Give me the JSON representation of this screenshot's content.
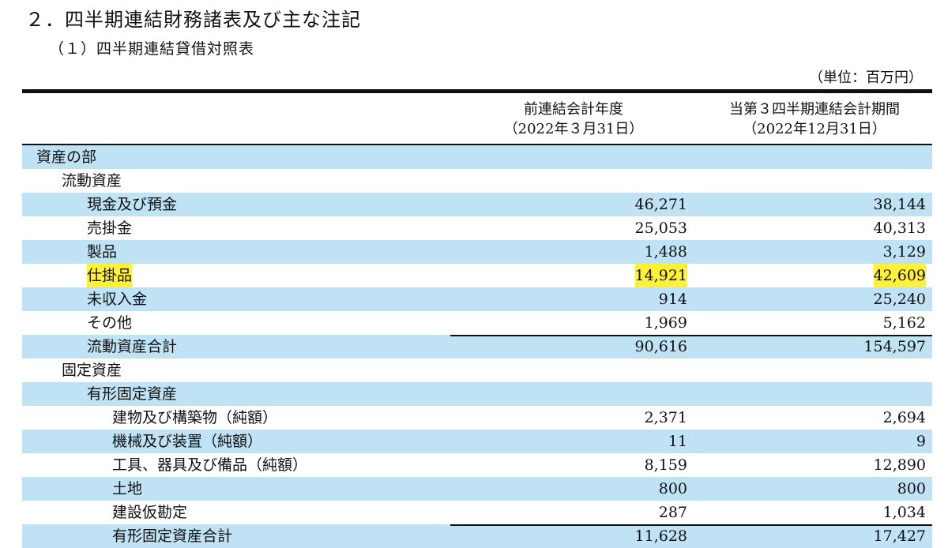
{
  "section_title": "２．四半期連結財務諸表及び主な注記",
  "sub_title": "（１）四半期連結貸借対照表",
  "unit_note": "（単位：百万円）",
  "columns": {
    "prev_line1": "前連結会計年度",
    "prev_line2": "（2022年３月31日）",
    "curr_line1": "当第３四半期連結会計期間",
    "curr_line2": "（2022年12月31日）"
  },
  "rows": [
    {
      "label": "資産の部",
      "prev": "",
      "curr": ""
    },
    {
      "label": "流動資産",
      "prev": "",
      "curr": ""
    },
    {
      "label": "現金及び預金",
      "prev": "46,271",
      "curr": "38,144"
    },
    {
      "label": "売掛金",
      "prev": "25,053",
      "curr": "40,313"
    },
    {
      "label": "製品",
      "prev": "1,488",
      "curr": "3,129"
    },
    {
      "label": "仕掛品",
      "prev": "14,921",
      "curr": "42,609"
    },
    {
      "label": "未収入金",
      "prev": "914",
      "curr": "25,240"
    },
    {
      "label": "その他",
      "prev": "1,969",
      "curr": "5,162"
    },
    {
      "label": "流動資産合計",
      "prev": "90,616",
      "curr": "154,597"
    },
    {
      "label": "固定資産",
      "prev": "",
      "curr": ""
    },
    {
      "label": "有形固定資産",
      "prev": "",
      "curr": ""
    },
    {
      "label": "建物及び構築物（純額）",
      "prev": "2,371",
      "curr": "2,694"
    },
    {
      "label": "機械及び装置（純額）",
      "prev": "11",
      "curr": "9"
    },
    {
      "label": "工具、器具及び備品（純額）",
      "prev": "8,159",
      "curr": "12,890"
    },
    {
      "label": "土地",
      "prev": "800",
      "curr": "800"
    },
    {
      "label": "建設仮勘定",
      "prev": "287",
      "curr": "1,034"
    },
    {
      "label": "有形固定資産合計",
      "prev": "11,628",
      "curr": "17,427"
    }
  ],
  "colors": {
    "row_band": "#bfe3f5",
    "highlight": "#fff236"
  }
}
